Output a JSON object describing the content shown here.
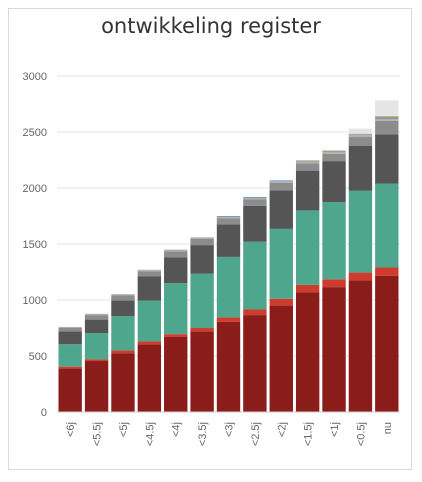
{
  "chart_data": {
    "type": "bar",
    "stacked": true,
    "title": "ontwikkeling register",
    "xlabel": "",
    "ylabel": "",
    "ylim": [
      0,
      3000
    ],
    "yticks": [
      "0",
      "500",
      "1000",
      "1500",
      "2000",
      "2500",
      "3000"
    ],
    "grid": true,
    "categories": [
      "<6j",
      "<5.5j",
      "<5j",
      "<4.5j",
      "<4j",
      "<3.5j",
      "<3j",
      "<2.5j",
      "<2j",
      "<1.5j",
      "<1j",
      "<0.5j",
      "nu"
    ],
    "colors": [
      "#8a1c1a",
      "#cf3b2c",
      "#4ea78c",
      "#555555",
      "#8c8c8c",
      "#b0b0b0",
      "#4a87c0",
      "#e0a040",
      "#e5e5e5"
    ],
    "series": [
      {
        "values": [
          390,
          455,
          525,
          605,
          670,
          720,
          805,
          865,
          950,
          1070,
          1115,
          1175,
          1215
        ]
      },
      {
        "values": [
          15,
          15,
          25,
          25,
          25,
          30,
          40,
          50,
          60,
          65,
          70,
          70,
          75
        ]
      },
      {
        "values": [
          200,
          235,
          305,
          365,
          455,
          485,
          540,
          605,
          625,
          665,
          690,
          730,
          750
        ]
      },
      {
        "values": [
          115,
          120,
          140,
          215,
          230,
          255,
          290,
          320,
          345,
          355,
          365,
          400,
          440
        ]
      },
      {
        "values": [
          30,
          40,
          45,
          45,
          55,
          55,
          55,
          60,
          65,
          65,
          65,
          80,
          120
        ]
      },
      {
        "values": [
          10,
          12,
          12,
          15,
          15,
          15,
          15,
          15,
          18,
          18,
          20,
          20,
          20
        ]
      },
      {
        "values": [
          0,
          0,
          0,
          0,
          0,
          0,
          5,
          5,
          5,
          5,
          5,
          5,
          12
        ]
      },
      {
        "values": [
          0,
          0,
          0,
          0,
          0,
          0,
          0,
          0,
          0,
          5,
          5,
          5,
          10
        ]
      },
      {
        "values": [
          0,
          0,
          0,
          0,
          0,
          0,
          0,
          0,
          0,
          0,
          0,
          45,
          140
        ]
      }
    ]
  }
}
